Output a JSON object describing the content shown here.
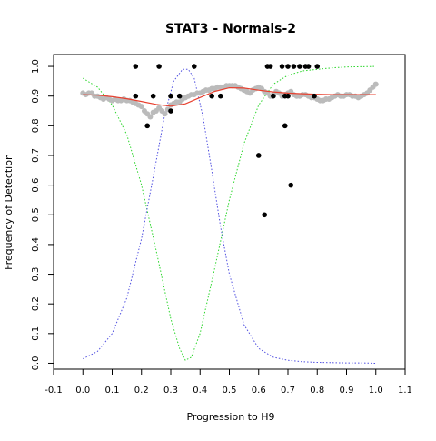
{
  "chart_data": {
    "type": "scatter",
    "title": "STAT3 - Normals-2",
    "xlabel": "Progression to H9",
    "ylabel": "Frequency of Detection",
    "xlim": [
      -0.1,
      1.1
    ],
    "ylim": [
      -0.02,
      1.04
    ],
    "x_ticks": [
      -0.1,
      0.0,
      0.1,
      0.2,
      0.3,
      0.4,
      0.5,
      0.6,
      0.7,
      0.8,
      0.9,
      1.0,
      1.1
    ],
    "x_tick_labels": [
      "-0.1",
      "0.0",
      "0.1",
      "0.2",
      "0.3",
      "0.4",
      "0.5",
      "0.6",
      "0.7",
      "0.8",
      "0.9",
      "1.0",
      "1.1"
    ],
    "y_ticks": [
      0.0,
      0.1,
      0.2,
      0.3,
      0.4,
      0.5,
      0.6,
      0.7,
      0.8,
      0.9,
      1.0
    ],
    "y_tick_labels": [
      "0.0",
      "0.1",
      "0.2",
      "0.3",
      "0.4",
      "0.5",
      "0.6",
      "0.7",
      "0.8",
      "0.9",
      "1.0"
    ],
    "grid": false,
    "legend": "none",
    "colors": {
      "points": "#000000",
      "smoothed_points": "#bbbbbb",
      "fit_line": "#e8402f",
      "green_curve": "#2bd62b",
      "blue_curve": "#5050e0"
    },
    "series": [
      {
        "kind": "points",
        "x": [
          0.18,
          0.18,
          0.22,
          0.24,
          0.26,
          0.3,
          0.3,
          0.33,
          0.38,
          0.44,
          0.47,
          0.6,
          0.62,
          0.63,
          0.64,
          0.65,
          0.68,
          0.69,
          0.69,
          0.7,
          0.7,
          0.71,
          0.72,
          0.74,
          0.76,
          0.77,
          0.79,
          0.8
        ],
        "y": [
          1.0,
          0.9,
          0.8,
          0.9,
          1.0,
          0.85,
          0.9,
          0.9,
          1.0,
          0.9,
          0.9,
          0.7,
          0.5,
          1.0,
          1.0,
          0.9,
          1.0,
          0.8,
          0.9,
          1.0,
          0.9,
          0.6,
          1.0,
          1.0,
          1.0,
          1.0,
          0.9,
          1.0
        ]
      },
      {
        "kind": "smoothed_points",
        "x": [
          0.0,
          0.01,
          0.02,
          0.03,
          0.04,
          0.05,
          0.06,
          0.07,
          0.08,
          0.09,
          0.1,
          0.11,
          0.12,
          0.13,
          0.14,
          0.15,
          0.16,
          0.17,
          0.18,
          0.19,
          0.2,
          0.21,
          0.22,
          0.23,
          0.24,
          0.25,
          0.26,
          0.27,
          0.28,
          0.29,
          0.3,
          0.31,
          0.32,
          0.33,
          0.34,
          0.35,
          0.36,
          0.37,
          0.38,
          0.39,
          0.4,
          0.41,
          0.42,
          0.43,
          0.44,
          0.45,
          0.46,
          0.47,
          0.48,
          0.49,
          0.5,
          0.51,
          0.52,
          0.53,
          0.54,
          0.55,
          0.56,
          0.57,
          0.58,
          0.59,
          0.6,
          0.61,
          0.62,
          0.63,
          0.64,
          0.65,
          0.66,
          0.67,
          0.68,
          0.69,
          0.7,
          0.71,
          0.72,
          0.73,
          0.74,
          0.75,
          0.76,
          0.77,
          0.78,
          0.79,
          0.8,
          0.81,
          0.82,
          0.83,
          0.84,
          0.85,
          0.86,
          0.87,
          0.88,
          0.89,
          0.9,
          0.91,
          0.92,
          0.93,
          0.94,
          0.95,
          0.96,
          0.97,
          0.98,
          0.99,
          1.0
        ],
        "y": [
          0.91,
          0.905,
          0.91,
          0.91,
          0.9,
          0.9,
          0.895,
          0.89,
          0.895,
          0.89,
          0.885,
          0.89,
          0.885,
          0.885,
          0.89,
          0.885,
          0.885,
          0.88,
          0.875,
          0.87,
          0.865,
          0.85,
          0.84,
          0.83,
          0.845,
          0.85,
          0.86,
          0.85,
          0.84,
          0.855,
          0.87,
          0.875,
          0.88,
          0.88,
          0.89,
          0.895,
          0.9,
          0.905,
          0.905,
          0.91,
          0.91,
          0.915,
          0.92,
          0.92,
          0.925,
          0.925,
          0.93,
          0.93,
          0.93,
          0.935,
          0.935,
          0.935,
          0.935,
          0.93,
          0.925,
          0.92,
          0.915,
          0.91,
          0.92,
          0.925,
          0.93,
          0.925,
          0.915,
          0.91,
          0.9,
          0.905,
          0.915,
          0.91,
          0.9,
          0.905,
          0.91,
          0.915,
          0.905,
          0.9,
          0.9,
          0.905,
          0.905,
          0.9,
          0.895,
          0.895,
          0.89,
          0.885,
          0.885,
          0.89,
          0.89,
          0.895,
          0.9,
          0.905,
          0.9,
          0.9,
          0.905,
          0.905,
          0.9,
          0.9,
          0.895,
          0.9,
          0.905,
          0.91,
          0.92,
          0.93,
          0.94
        ]
      },
      {
        "kind": "fit_line",
        "x": [
          0.0,
          0.05,
          0.1,
          0.15,
          0.2,
          0.25,
          0.3,
          0.35,
          0.4,
          0.45,
          0.5,
          0.55,
          0.6,
          0.65,
          0.7,
          0.75,
          0.8,
          0.85,
          0.9,
          0.95,
          1.0
        ],
        "y": [
          0.905,
          0.903,
          0.898,
          0.891,
          0.882,
          0.872,
          0.866,
          0.874,
          0.895,
          0.916,
          0.928,
          0.927,
          0.92,
          0.914,
          0.91,
          0.908,
          0.906,
          0.905,
          0.905,
          0.905,
          0.905
        ]
      },
      {
        "kind": "green_curve",
        "x": [
          0.0,
          0.05,
          0.1,
          0.15,
          0.2,
          0.25,
          0.3,
          0.33,
          0.35,
          0.37,
          0.4,
          0.45,
          0.5,
          0.55,
          0.6,
          0.65,
          0.7,
          0.75,
          0.8,
          0.85,
          0.9,
          0.95,
          1.0
        ],
        "y": [
          0.96,
          0.93,
          0.87,
          0.77,
          0.6,
          0.38,
          0.15,
          0.05,
          0.01,
          0.02,
          0.1,
          0.32,
          0.55,
          0.74,
          0.87,
          0.94,
          0.97,
          0.985,
          0.99,
          0.995,
          0.998,
          0.999,
          1.0
        ]
      },
      {
        "kind": "blue_curve",
        "x": [
          0.0,
          0.05,
          0.1,
          0.15,
          0.2,
          0.25,
          0.28,
          0.31,
          0.34,
          0.36,
          0.38,
          0.41,
          0.44,
          0.47,
          0.5,
          0.55,
          0.6,
          0.65,
          0.7,
          0.75,
          0.8,
          0.85,
          0.9,
          0.95,
          1.0
        ],
        "y": [
          0.015,
          0.04,
          0.1,
          0.22,
          0.42,
          0.68,
          0.84,
          0.95,
          0.99,
          0.99,
          0.96,
          0.83,
          0.65,
          0.46,
          0.3,
          0.13,
          0.05,
          0.02,
          0.01,
          0.005,
          0.003,
          0.002,
          0.001,
          0.001,
          0.0
        ]
      }
    ]
  }
}
